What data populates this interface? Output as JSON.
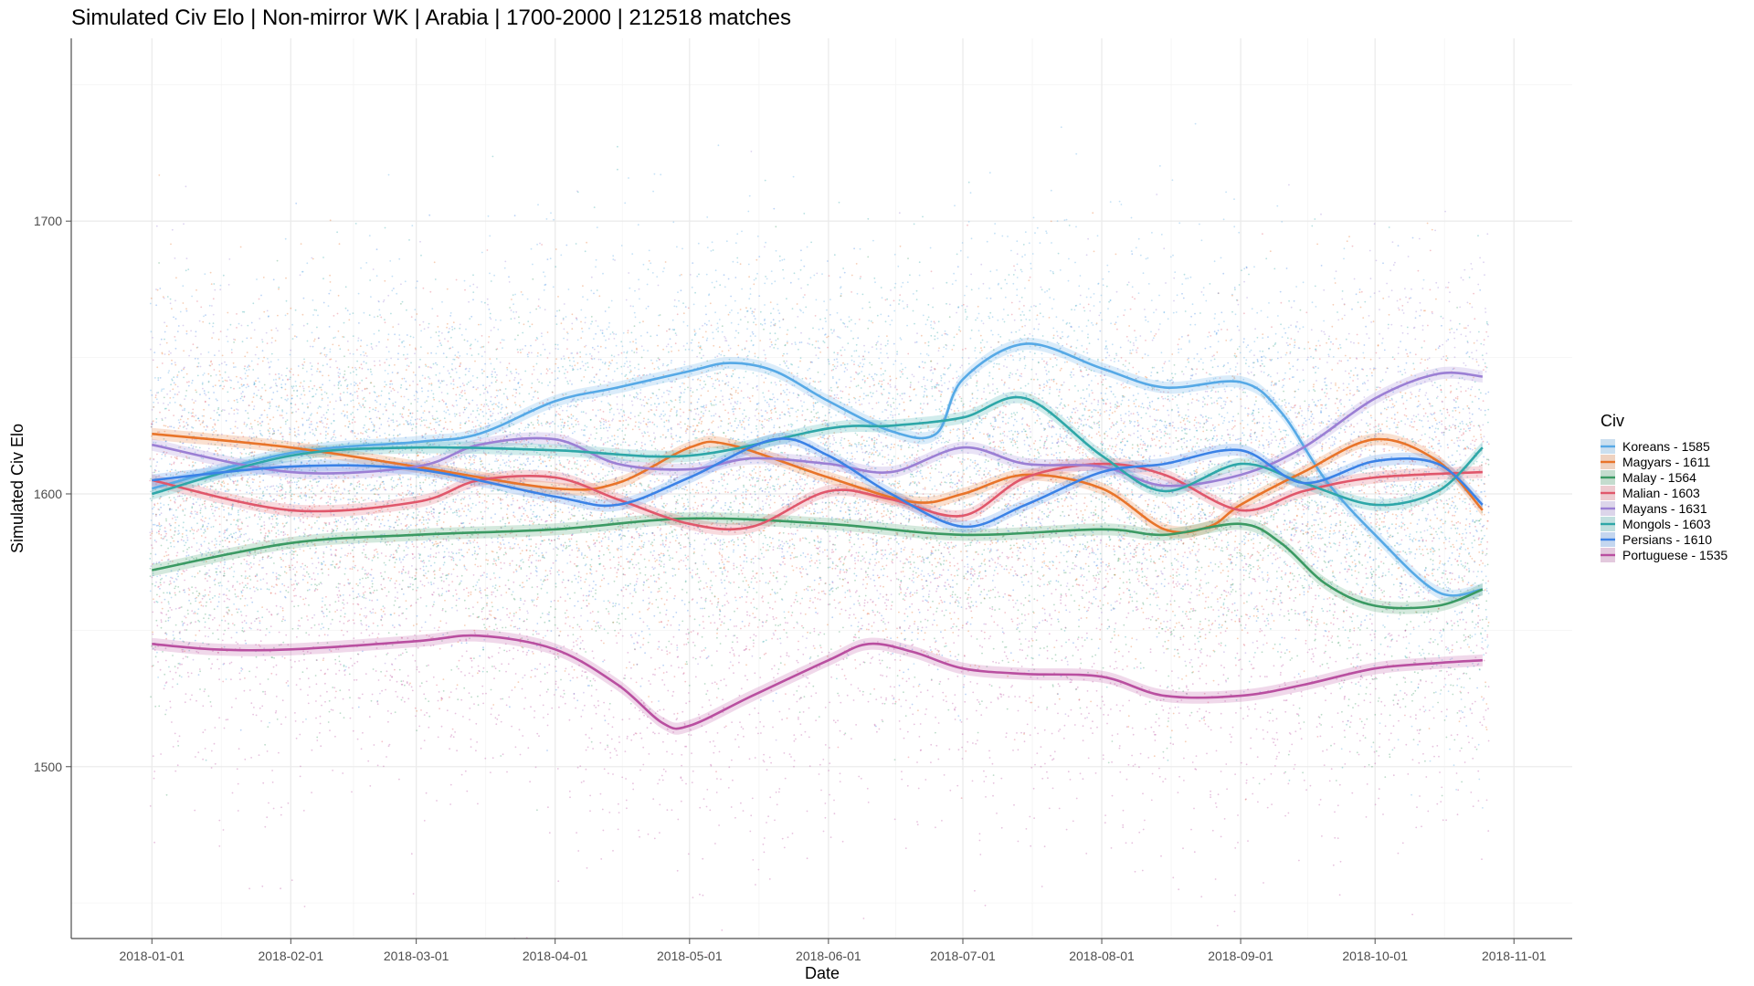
{
  "chart_data": {
    "type": "scatter",
    "title": "Simulated Civ Elo | Non-mirror WK | Arabia | 1700-2000 | 212518 matches",
    "xlabel": "Date",
    "ylabel": "Simulated Civ Elo",
    "x_tick_labels": [
      "2018-01-01",
      "2018-02-01",
      "2018-03-01",
      "2018-04-01",
      "2018-05-01",
      "2018-06-01",
      "2018-07-01",
      "2018-08-01",
      "2018-09-01",
      "2018-10-01",
      "2018-11-01"
    ],
    "x_range": [
      "2017-12-14",
      "2018-11-14"
    ],
    "y_ticks": [
      1500,
      1600,
      1700
    ],
    "ylim": [
      1437,
      1767
    ],
    "grid": true,
    "legend": {
      "title": "Civ",
      "position": "right"
    },
    "series": [
      {
        "name": "Koreans - 1585",
        "color": "#56a9e6",
        "smooth": [
          [
            "2018-01-01",
            1602
          ],
          [
            "2018-02-01",
            1615
          ],
          [
            "2018-03-01",
            1619
          ],
          [
            "2018-03-15",
            1622
          ],
          [
            "2018-04-01",
            1634
          ],
          [
            "2018-04-15",
            1639
          ],
          [
            "2018-05-01",
            1645
          ],
          [
            "2018-05-10",
            1648
          ],
          [
            "2018-05-20",
            1645
          ],
          [
            "2018-06-01",
            1634
          ],
          [
            "2018-06-15",
            1623
          ],
          [
            "2018-06-25",
            1622
          ],
          [
            "2018-07-01",
            1642
          ],
          [
            "2018-07-15",
            1655
          ],
          [
            "2018-08-01",
            1646
          ],
          [
            "2018-08-15",
            1639
          ],
          [
            "2018-09-01",
            1641
          ],
          [
            "2018-09-10",
            1630
          ],
          [
            "2018-09-20",
            1605
          ],
          [
            "2018-10-01",
            1585
          ],
          [
            "2018-10-15",
            1564
          ],
          [
            "2018-10-25",
            1565
          ]
        ]
      },
      {
        "name": "Magyars - 1611",
        "color": "#e8742a",
        "smooth": [
          [
            "2018-01-01",
            1622
          ],
          [
            "2018-02-01",
            1617
          ],
          [
            "2018-03-01",
            1610
          ],
          [
            "2018-04-01",
            1602
          ],
          [
            "2018-04-15",
            1604
          ],
          [
            "2018-05-01",
            1617
          ],
          [
            "2018-05-10",
            1618
          ],
          [
            "2018-06-01",
            1606
          ],
          [
            "2018-06-20",
            1597
          ],
          [
            "2018-07-01",
            1600
          ],
          [
            "2018-07-15",
            1607
          ],
          [
            "2018-08-01",
            1602
          ],
          [
            "2018-08-15",
            1587
          ],
          [
            "2018-08-25",
            1588
          ],
          [
            "2018-09-01",
            1596
          ],
          [
            "2018-09-15",
            1608
          ],
          [
            "2018-10-01",
            1620
          ],
          [
            "2018-10-15",
            1612
          ],
          [
            "2018-10-25",
            1594
          ]
        ]
      },
      {
        "name": "Malay - 1564",
        "color": "#3b9a63",
        "smooth": [
          [
            "2018-01-01",
            1572
          ],
          [
            "2018-02-01",
            1582
          ],
          [
            "2018-03-01",
            1585
          ],
          [
            "2018-04-01",
            1587
          ],
          [
            "2018-05-01",
            1591
          ],
          [
            "2018-06-01",
            1589
          ],
          [
            "2018-07-01",
            1585
          ],
          [
            "2018-08-01",
            1587
          ],
          [
            "2018-08-15",
            1585
          ],
          [
            "2018-09-01",
            1589
          ],
          [
            "2018-09-10",
            1582
          ],
          [
            "2018-09-20",
            1567
          ],
          [
            "2018-10-01",
            1559
          ],
          [
            "2018-10-15",
            1559
          ],
          [
            "2018-10-25",
            1565
          ]
        ]
      },
      {
        "name": "Malian - 1603",
        "color": "#e0576b",
        "smooth": [
          [
            "2018-01-01",
            1605
          ],
          [
            "2018-02-01",
            1594
          ],
          [
            "2018-03-01",
            1597
          ],
          [
            "2018-03-15",
            1605
          ],
          [
            "2018-04-01",
            1606
          ],
          [
            "2018-04-15",
            1598
          ],
          [
            "2018-05-01",
            1589
          ],
          [
            "2018-05-15",
            1588
          ],
          [
            "2018-06-01",
            1601
          ],
          [
            "2018-06-15",
            1598
          ],
          [
            "2018-07-01",
            1592
          ],
          [
            "2018-07-15",
            1606
          ],
          [
            "2018-08-01",
            1611
          ],
          [
            "2018-08-15",
            1607
          ],
          [
            "2018-09-01",
            1594
          ],
          [
            "2018-09-15",
            1601
          ],
          [
            "2018-10-01",
            1606
          ],
          [
            "2018-10-25",
            1608
          ]
        ]
      },
      {
        "name": "Mayans - 1631",
        "color": "#9b7fd4",
        "smooth": [
          [
            "2018-01-01",
            1618
          ],
          [
            "2018-02-01",
            1608
          ],
          [
            "2018-03-01",
            1610
          ],
          [
            "2018-03-15",
            1618
          ],
          [
            "2018-04-01",
            1620
          ],
          [
            "2018-04-15",
            1611
          ],
          [
            "2018-05-01",
            1609
          ],
          [
            "2018-05-15",
            1613
          ],
          [
            "2018-06-01",
            1611
          ],
          [
            "2018-06-15",
            1608
          ],
          [
            "2018-07-01",
            1617
          ],
          [
            "2018-07-15",
            1611
          ],
          [
            "2018-08-01",
            1610
          ],
          [
            "2018-08-15",
            1603
          ],
          [
            "2018-09-01",
            1607
          ],
          [
            "2018-09-15",
            1617
          ],
          [
            "2018-10-01",
            1635
          ],
          [
            "2018-10-15",
            1644
          ],
          [
            "2018-10-25",
            1643
          ]
        ]
      },
      {
        "name": "Mongols - 1603",
        "color": "#2ea7a8",
        "smooth": [
          [
            "2018-01-01",
            1600
          ],
          [
            "2018-02-01",
            1614
          ],
          [
            "2018-03-01",
            1617
          ],
          [
            "2018-04-01",
            1616
          ],
          [
            "2018-05-01",
            1614
          ],
          [
            "2018-06-01",
            1624
          ],
          [
            "2018-06-15",
            1625
          ],
          [
            "2018-07-01",
            1628
          ],
          [
            "2018-07-15",
            1635
          ],
          [
            "2018-08-01",
            1614
          ],
          [
            "2018-08-15",
            1601
          ],
          [
            "2018-09-01",
            1611
          ],
          [
            "2018-09-15",
            1604
          ],
          [
            "2018-10-01",
            1596
          ],
          [
            "2018-10-15",
            1601
          ],
          [
            "2018-10-25",
            1617
          ]
        ]
      },
      {
        "name": "Persians - 1610",
        "color": "#3b82e6",
        "smooth": [
          [
            "2018-01-01",
            1605
          ],
          [
            "2018-02-01",
            1610
          ],
          [
            "2018-03-01",
            1609
          ],
          [
            "2018-04-01",
            1599
          ],
          [
            "2018-04-15",
            1596
          ],
          [
            "2018-05-01",
            1606
          ],
          [
            "2018-05-20",
            1620
          ],
          [
            "2018-06-01",
            1614
          ],
          [
            "2018-06-15",
            1600
          ],
          [
            "2018-07-01",
            1588
          ],
          [
            "2018-07-15",
            1596
          ],
          [
            "2018-08-01",
            1608
          ],
          [
            "2018-08-15",
            1611
          ],
          [
            "2018-09-01",
            1616
          ],
          [
            "2018-09-15",
            1604
          ],
          [
            "2018-10-01",
            1612
          ],
          [
            "2018-10-15",
            1611
          ],
          [
            "2018-10-25",
            1596
          ]
        ]
      },
      {
        "name": "Portuguese - 1535",
        "color": "#b94fa0",
        "smooth": [
          [
            "2018-01-01",
            1545
          ],
          [
            "2018-01-15",
            1543
          ],
          [
            "2018-02-01",
            1543
          ],
          [
            "2018-03-01",
            1546
          ],
          [
            "2018-03-15",
            1548
          ],
          [
            "2018-04-01",
            1543
          ],
          [
            "2018-04-15",
            1530
          ],
          [
            "2018-04-25",
            1516
          ],
          [
            "2018-05-01",
            1515
          ],
          [
            "2018-05-15",
            1526
          ],
          [
            "2018-06-01",
            1539
          ],
          [
            "2018-06-10",
            1545
          ],
          [
            "2018-06-20",
            1542
          ],
          [
            "2018-07-01",
            1536
          ],
          [
            "2018-07-15",
            1534
          ],
          [
            "2018-08-01",
            1533
          ],
          [
            "2018-08-15",
            1526
          ],
          [
            "2018-09-01",
            1526
          ],
          [
            "2018-09-15",
            1530
          ],
          [
            "2018-10-01",
            1536
          ],
          [
            "2018-10-15",
            1538
          ],
          [
            "2018-10-25",
            1539
          ]
        ]
      }
    ]
  }
}
